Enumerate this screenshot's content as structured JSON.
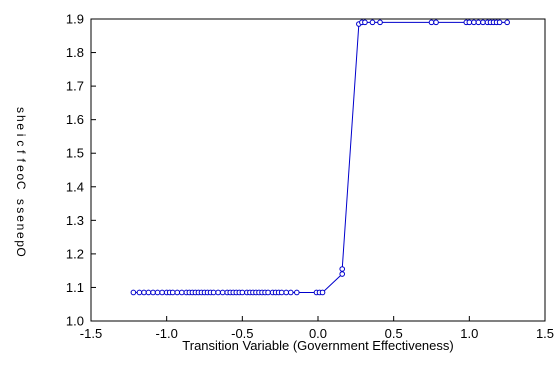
{
  "chart_data": {
    "type": "line",
    "title": "",
    "xlabel": "Transition Variable (Government Effectiveness)",
    "ylabel": "Openness Coefficients",
    "ylabel_rendered": "sheicffeoC ssenepO",
    "xlim": [
      -1.5,
      1.5
    ],
    "ylim": [
      1.0,
      1.9
    ],
    "x_ticks": [
      -1.5,
      -1.0,
      -0.5,
      0.0,
      0.5,
      1.0,
      1.5
    ],
    "x_tick_labels": [
      "-1.5",
      "-1.0",
      "-0.5",
      "0.0",
      "0.5",
      "1.0",
      "1.5"
    ],
    "y_ticks": [
      1.0,
      1.1,
      1.2,
      1.3,
      1.4,
      1.5,
      1.6,
      1.7,
      1.8,
      1.9
    ],
    "y_tick_labels": [
      "1.0",
      "1.1",
      "1.2",
      "1.3",
      "1.4",
      "1.5",
      "1.6",
      "1.7",
      "1.8",
      "1.9"
    ],
    "grid": false,
    "legend": "none",
    "line_color": "#0000cc",
    "marker": "circle-open",
    "series": [
      {
        "x": [
          -1.22,
          -1.18,
          -1.15,
          -1.12,
          -1.09,
          -1.06,
          -1.03,
          -1.0,
          -0.98,
          -0.96,
          -0.93,
          -0.9,
          -0.87,
          -0.85,
          -0.83,
          -0.81,
          -0.79,
          -0.77,
          -0.75,
          -0.73,
          -0.71,
          -0.69,
          -0.66,
          -0.63,
          -0.6,
          -0.58,
          -0.56,
          -0.54,
          -0.52,
          -0.5,
          -0.47,
          -0.45,
          -0.43,
          -0.41,
          -0.39,
          -0.37,
          -0.35,
          -0.33,
          -0.3,
          -0.28,
          -0.26,
          -0.24,
          -0.21,
          -0.18,
          -0.14,
          -0.01,
          0.01,
          0.03,
          0.16,
          0.16,
          0.27,
          0.29,
          0.31,
          0.36,
          0.41,
          0.75,
          0.78,
          0.98,
          1.0,
          1.03,
          1.06,
          1.09,
          1.12,
          1.14,
          1.16,
          1.18,
          1.2,
          1.25
        ],
        "y": [
          1.085,
          1.085,
          1.085,
          1.085,
          1.085,
          1.085,
          1.085,
          1.085,
          1.085,
          1.085,
          1.085,
          1.085,
          1.085,
          1.085,
          1.085,
          1.085,
          1.085,
          1.085,
          1.085,
          1.085,
          1.085,
          1.085,
          1.085,
          1.085,
          1.085,
          1.085,
          1.085,
          1.085,
          1.085,
          1.085,
          1.085,
          1.085,
          1.085,
          1.085,
          1.085,
          1.085,
          1.085,
          1.085,
          1.085,
          1.085,
          1.085,
          1.085,
          1.085,
          1.085,
          1.085,
          1.085,
          1.085,
          1.085,
          1.14,
          1.155,
          1.885,
          1.89,
          1.89,
          1.89,
          1.89,
          1.89,
          1.89,
          1.89,
          1.89,
          1.89,
          1.89,
          1.89,
          1.89,
          1.89,
          1.89,
          1.89,
          1.89,
          1.89
        ]
      }
    ]
  }
}
